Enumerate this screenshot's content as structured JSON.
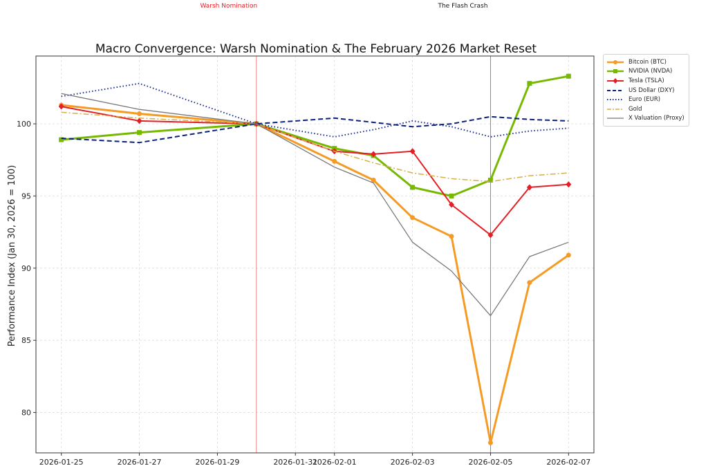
{
  "chart_data": {
    "type": "line",
    "title": "Macro Convergence: Warsh Nomination & The February 2026 Market Reset",
    "xlabel": "",
    "ylabel": "Performance Index (Jan 30, 2026 = 100)",
    "x": [
      "2026-01-25",
      "2026-01-27",
      "2026-01-30",
      "2026-02-01",
      "2026-02-02",
      "2026-02-03",
      "2026-02-04",
      "2026-02-05",
      "2026-02-06",
      "2026-02-07"
    ],
    "x_range": [
      "2026-01-24.35",
      "2026-02-07.65"
    ],
    "xticks": [
      "2026-01-25",
      "2026-01-27",
      "2026-01-29",
      "2026-01-31",
      "2026-02-01",
      "2026-02-03",
      "2026-02-05",
      "2026-02-07"
    ],
    "ylim": [
      77.2,
      104.7
    ],
    "yticks": [
      80,
      85,
      90,
      95,
      100
    ],
    "grid": true,
    "legend_position": "outside-top-right",
    "series": [
      {
        "name": "Bitcoin (BTC)",
        "color": "#f59a23",
        "style": "solid",
        "marker": "circle",
        "values": [
          101.3,
          100.7,
          100.0,
          97.4,
          96.1,
          93.5,
          92.2,
          77.9,
          89.0,
          90.9
        ]
      },
      {
        "name": "NVIDIA (NVDA)",
        "color": "#76b900",
        "style": "solid",
        "marker": "square",
        "values": [
          98.9,
          99.4,
          100.0,
          98.3,
          97.8,
          95.6,
          95.0,
          96.1,
          102.8,
          103.3
        ]
      },
      {
        "name": "Tesla (TSLA)",
        "color": "#e31e24",
        "style": "solid",
        "marker": "diamond",
        "values": [
          101.2,
          100.2,
          100.0,
          98.1,
          97.9,
          98.1,
          94.4,
          92.3,
          95.6,
          95.8
        ]
      },
      {
        "name": "US Dollar (DXY)",
        "color": "#0a1f7d",
        "style": "dashed",
        "marker": "none",
        "values": [
          99.0,
          98.7,
          100.0,
          100.4,
          100.1,
          99.8,
          100.0,
          100.5,
          100.3,
          100.2
        ]
      },
      {
        "name": "Euro (EUR)",
        "color": "#1a2a8f",
        "style": "dotted",
        "marker": "none",
        "values": [
          101.9,
          102.8,
          100.0,
          99.1,
          99.6,
          100.2,
          99.8,
          99.1,
          99.5,
          99.7
        ]
      },
      {
        "name": "Gold",
        "color": "#d4b04a",
        "style": "dashdot",
        "marker": "none",
        "values": [
          100.8,
          100.4,
          100.0,
          98.1,
          97.3,
          96.6,
          96.2,
          96.0,
          96.4,
          96.6
        ]
      },
      {
        "name": "X Valuation (Proxy)",
        "color": "#777777",
        "style": "solid",
        "marker": "none",
        "values": [
          102.1,
          101.0,
          100.0,
          97.0,
          95.9,
          91.8,
          89.8,
          86.7,
          90.8,
          91.8
        ]
      }
    ],
    "annotations": [
      {
        "label": "Warsh Nomination",
        "x": "2026-01-30",
        "color": "#e31e24"
      },
      {
        "label": "The Flash Crash",
        "x": "2026-02-05",
        "color": "#111111"
      }
    ]
  }
}
